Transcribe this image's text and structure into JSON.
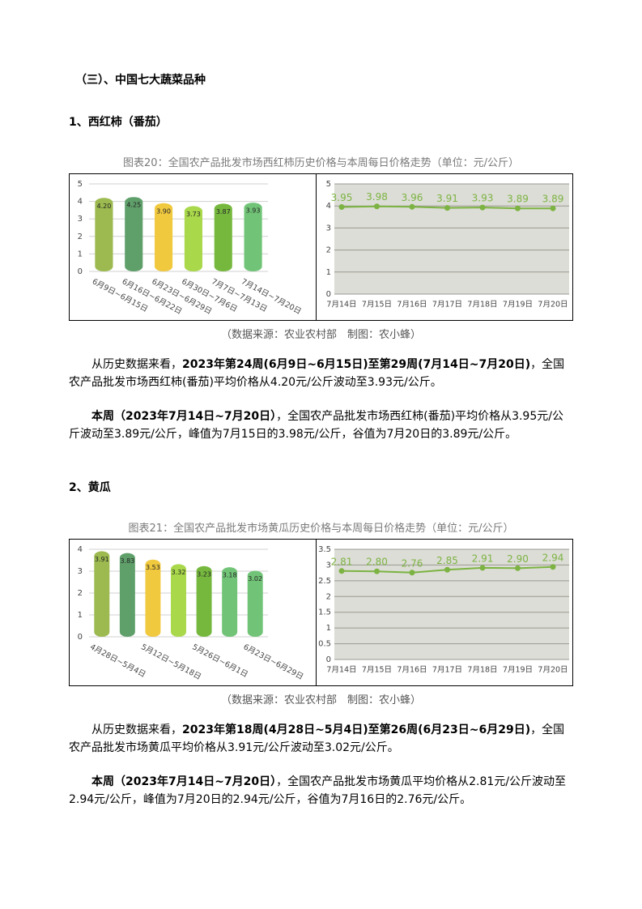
{
  "heading": "（三）、中国七大蔬菜品种",
  "sections": [
    {
      "title": "1、西红柿（番茄）",
      "caption": "图表20：全国农产品批发市场西红柿历史价格与本周每日价格走势（单位：元/公斤）",
      "charts": [
        {
          "type": "bar",
          "categories": [
            "6月9日~6月15日",
            "6月16日~6月22日",
            "6月23日~6月29日",
            "6月30日~7月6日",
            "7月7日~7月13日",
            "7月14日~7月20日"
          ],
          "values": [
            4.2,
            4.25,
            3.9,
            3.73,
            3.87,
            3.93
          ],
          "value_labels": [
            "4.20",
            "4.25",
            "3.90",
            "3.73",
            "3.87",
            "3.93"
          ],
          "colors": [
            "#9cba4f",
            "#5f9f6a",
            "#f1c93f",
            "#a9d84a",
            "#76b83e",
            "#71c477"
          ],
          "ylim": [
            0,
            5
          ],
          "yticks": [
            0,
            1,
            2,
            3,
            4,
            5
          ],
          "grid": true
        },
        {
          "type": "line",
          "categories": [
            "7月14日",
            "7月15日",
            "7月16日",
            "7月17日",
            "7月18日",
            "7月19日",
            "7月20日"
          ],
          "values": [
            3.95,
            3.98,
            3.96,
            3.91,
            3.93,
            3.89,
            3.89
          ],
          "color": "#7cb342",
          "ylim": [
            0,
            5
          ],
          "yticks": [
            0,
            1,
            2,
            3,
            4,
            5
          ],
          "grid": true
        }
      ],
      "source": "（数据来源：农业农村部　制图：农小蜂）",
      "paragraphs": [
        [
          {
            "text": "从历史数据来看，"
          },
          {
            "text": "2023年第24周(6月9日~6月15日)至第29周(7月14日~7月20日)",
            "bold": true
          },
          {
            "text": "，全国农产品批发市场西红柿(番茄)平均价格从4.20元/公斤波动至3.93元/公斤。"
          }
        ],
        [
          {
            "text": "本周（2023年7月14日~7月20日）",
            "bold": true
          },
          {
            "text": "，全国农产品批发市场西红柿(番茄)平均价格从3.95元/公斤波动至3.89元/公斤，峰值为7月15日的3.98元/公斤，谷值为7月20日的3.89元/公斤。"
          }
        ]
      ]
    },
    {
      "title": "2、黄瓜",
      "caption": "图表21：全国农产品批发市场黄瓜历史价格与本周每日价格走势（单位：元/公斤）",
      "charts": [
        {
          "type": "bar",
          "categories": [
            "4月28日~5月4日",
            null,
            "5月12日~5月18日",
            null,
            "5月26日~6月1日",
            null,
            "6月23日~6月29日"
          ],
          "values": [
            3.91,
            3.83,
            3.53,
            3.32,
            3.23,
            3.18,
            3.02
          ],
          "colors": [
            "#9cba4f",
            "#5f9f6a",
            "#f1c93f",
            "#a9d84a",
            "#76b83e",
            "#71c477",
            "#71c477"
          ],
          "ylim": [
            0,
            4
          ],
          "yticks": [
            0,
            1,
            2,
            3,
            4
          ],
          "grid": true
        },
        {
          "type": "line",
          "categories": [
            "7月14日",
            "7月15日",
            "7月16日",
            "7月17日",
            "7月18日",
            "7月19日",
            "7月20日"
          ],
          "values": [
            2.81,
            2.8,
            2.76,
            2.85,
            2.91,
            2.9,
            2.94
          ],
          "value_labels": [
            "2.81",
            "2.80",
            "2.76",
            "2.85",
            "2.91",
            "2.90",
            "2.94"
          ],
          "color": "#7cb342",
          "ylim": [
            0,
            3.5
          ],
          "yticks": [
            0,
            0.5,
            1,
            1.5,
            2,
            2.5,
            3,
            3.5
          ],
          "grid": true
        }
      ],
      "source": "（数据来源：农业农村部　制图：农小蜂）",
      "paragraphs": [
        [
          {
            "text": "从历史数据来看，"
          },
          {
            "text": "2023年第18周(4月28日~5月4日)至第26周(6月23日~6月29日)",
            "bold": true
          },
          {
            "text": "，全国农产品批发市场黄瓜平均价格从3.91元/公斤波动至3.02元/公斤。"
          }
        ],
        [
          {
            "text": "本周（2023年7月14日~7月20日）",
            "bold": true
          },
          {
            "text": "，全国农产品批发市场黄瓜平均价格从2.81元/公斤波动至2.94元/公斤，峰值为7月20日的2.94元/公斤，谷值为7月16日的2.76元/公斤。"
          }
        ]
      ]
    }
  ]
}
